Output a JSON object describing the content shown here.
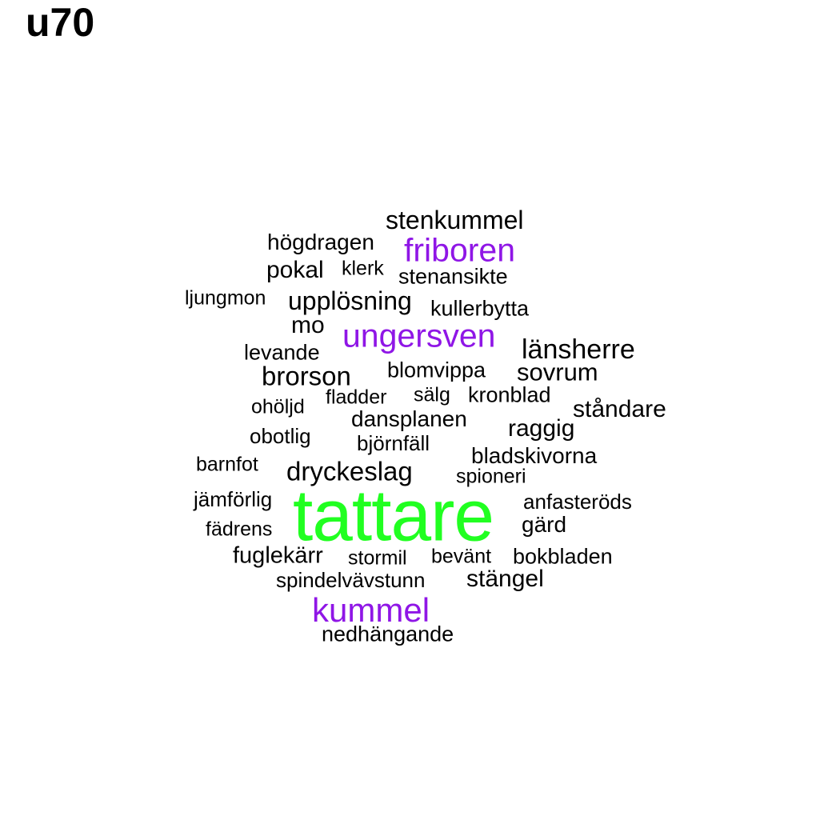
{
  "title": "u70",
  "colors": {
    "default": "#000000",
    "purple": "#8f16e6",
    "green": "#21ff21"
  },
  "words": [
    {
      "text": "stenkummel",
      "color": "default"
    },
    {
      "text": "högdragen",
      "color": "default"
    },
    {
      "text": "friboren",
      "color": "purple"
    },
    {
      "text": "pokal",
      "color": "default"
    },
    {
      "text": "klerk",
      "color": "default"
    },
    {
      "text": "stenansikte",
      "color": "default"
    },
    {
      "text": "ljungmon",
      "color": "default"
    },
    {
      "text": "upplösning",
      "color": "default"
    },
    {
      "text": "kullerbytta",
      "color": "default"
    },
    {
      "text": "mo",
      "color": "default"
    },
    {
      "text": "ungersven",
      "color": "purple"
    },
    {
      "text": "länsherre",
      "color": "default"
    },
    {
      "text": "levande",
      "color": "default"
    },
    {
      "text": "brorson",
      "color": "default"
    },
    {
      "text": "blomvippa",
      "color": "default"
    },
    {
      "text": "sovrum",
      "color": "default"
    },
    {
      "text": "ohöljd",
      "color": "default"
    },
    {
      "text": "fladder",
      "color": "default"
    },
    {
      "text": "sälg",
      "color": "default"
    },
    {
      "text": "kronblad",
      "color": "default"
    },
    {
      "text": "ståndare",
      "color": "default"
    },
    {
      "text": "dansplanen",
      "color": "default"
    },
    {
      "text": "raggig",
      "color": "default"
    },
    {
      "text": "obotlig",
      "color": "default"
    },
    {
      "text": "björnfäll",
      "color": "default"
    },
    {
      "text": "bladskivorna",
      "color": "default"
    },
    {
      "text": "barnfot",
      "color": "default"
    },
    {
      "text": "dryckeslag",
      "color": "default"
    },
    {
      "text": "spioneri",
      "color": "default"
    },
    {
      "text": "jämförlig",
      "color": "default"
    },
    {
      "text": "tattare",
      "color": "green"
    },
    {
      "text": "anfasteröds",
      "color": "default"
    },
    {
      "text": "gärd",
      "color": "default"
    },
    {
      "text": "fädrens",
      "color": "default"
    },
    {
      "text": "fuglekärr",
      "color": "default"
    },
    {
      "text": "stormil",
      "color": "default"
    },
    {
      "text": "bevänt",
      "color": "default"
    },
    {
      "text": "bokbladen",
      "color": "default"
    },
    {
      "text": "spindelvävstunn",
      "color": "default"
    },
    {
      "text": "stängel",
      "color": "default"
    },
    {
      "text": "kummel",
      "color": "purple"
    },
    {
      "text": "nedhängande",
      "color": "default"
    }
  ]
}
